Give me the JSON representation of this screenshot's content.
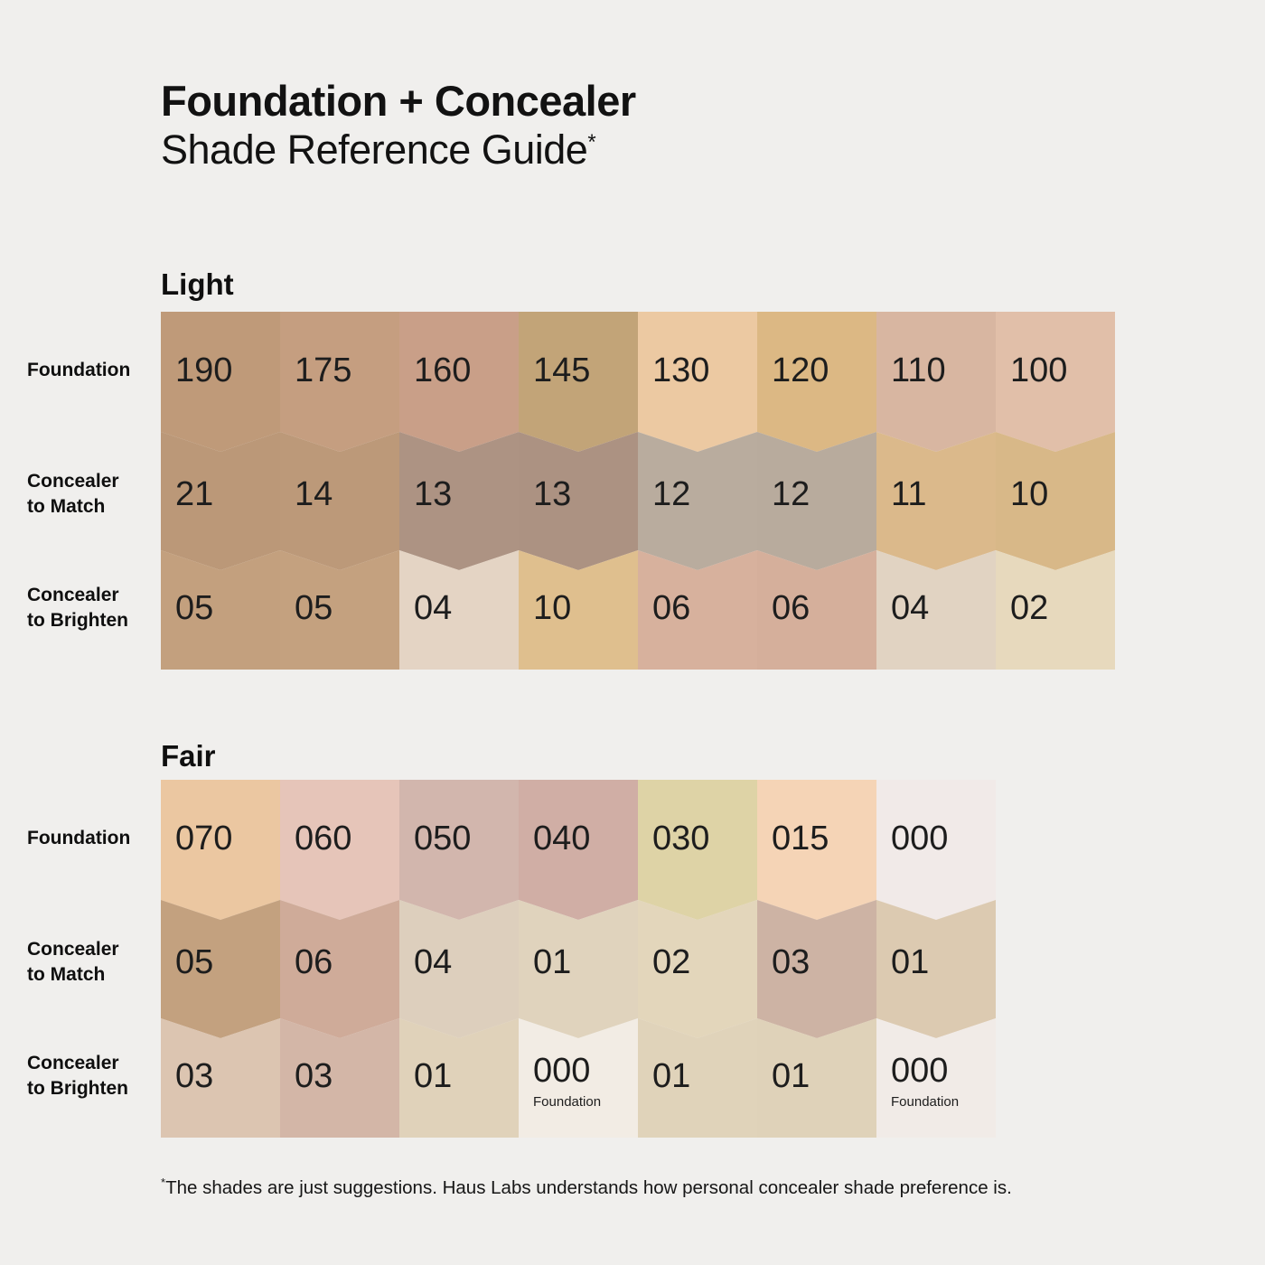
{
  "title": {
    "line1": "Foundation + Concealer",
    "line2": "Shade Reference Guide",
    "superscript": "*"
  },
  "colors": {
    "background": "#f0efed",
    "text": "#121212"
  },
  "row_labels": {
    "foundation": [
      "Foundation"
    ],
    "match": [
      "Concealer",
      "to Match"
    ],
    "brighten": [
      "Concealer",
      "to Brighten"
    ]
  },
  "sections": [
    {
      "heading": "Light",
      "rows": [
        {
          "key": "foundation",
          "cells": [
            {
              "label": "190",
              "color": "#bf9a79"
            },
            {
              "label": "175",
              "color": "#c59e80"
            },
            {
              "label": "160",
              "color": "#c99f88"
            },
            {
              "label": "145",
              "color": "#c2a478"
            },
            {
              "label": "130",
              "color": "#ecc9a2"
            },
            {
              "label": "120",
              "color": "#dcb884"
            },
            {
              "label": "110",
              "color": "#d8b6a1"
            },
            {
              "label": "100",
              "color": "#e1bfa9"
            }
          ]
        },
        {
          "key": "match",
          "cells": [
            {
              "label": "21",
              "color": "#bb9878"
            },
            {
              "label": "14",
              "color": "#bc9979"
            },
            {
              "label": "13",
              "color": "#ad9383"
            },
            {
              "label": "13",
              "color": "#ac9282"
            },
            {
              "label": "12",
              "color": "#b9ac9e"
            },
            {
              "label": "12",
              "color": "#b8ab9d"
            },
            {
              "label": "11",
              "color": "#dbb98b"
            },
            {
              "label": "10",
              "color": "#d8b888"
            }
          ]
        },
        {
          "key": "brighten",
          "cells": [
            {
              "label": "05",
              "color": "#c3a07e"
            },
            {
              "label": "05",
              "color": "#c4a17f"
            },
            {
              "label": "04",
              "color": "#e4d4c4"
            },
            {
              "label": "10",
              "color": "#dfbf8e"
            },
            {
              "label": "06",
              "color": "#d7b19d"
            },
            {
              "label": "06",
              "color": "#d5af9b"
            },
            {
              "label": "04",
              "color": "#e1d3c2"
            },
            {
              "label": "02",
              "color": "#e7d9bd"
            }
          ]
        }
      ]
    },
    {
      "heading": "Fair",
      "rows": [
        {
          "key": "foundation",
          "cells": [
            {
              "label": "070",
              "color": "#ebc7a1"
            },
            {
              "label": "060",
              "color": "#e6c5b9"
            },
            {
              "label": "050",
              "color": "#d2b6ad"
            },
            {
              "label": "040",
              "color": "#d0aea5"
            },
            {
              "label": "030",
              "color": "#ded3a6"
            },
            {
              "label": "015",
              "color": "#f5d4b6"
            },
            {
              "label": "000",
              "color": "#f1eae8"
            }
          ]
        },
        {
          "key": "match",
          "cells": [
            {
              "label": "05",
              "color": "#c3a17f"
            },
            {
              "label": "06",
              "color": "#cfab99"
            },
            {
              "label": "04",
              "color": "#ddcfbd"
            },
            {
              "label": "01",
              "color": "#e0d3bd"
            },
            {
              "label": "02",
              "color": "#e3d6bb"
            },
            {
              "label": "03",
              "color": "#cdb3a4"
            },
            {
              "label": "01",
              "color": "#dccab1"
            }
          ]
        },
        {
          "key": "brighten",
          "cells": [
            {
              "label": "03",
              "color": "#dcc5b1"
            },
            {
              "label": "03",
              "color": "#d3b6a7"
            },
            {
              "label": "01",
              "color": "#e0d2ba"
            },
            {
              "label": "000",
              "sublabel": "Foundation",
              "color": "#f2ece4"
            },
            {
              "label": "01",
              "color": "#e0d3ba"
            },
            {
              "label": "01",
              "color": "#dfd2b9"
            },
            {
              "label": "000",
              "sublabel": "Foundation",
              "color": "#f1ebe7"
            }
          ]
        }
      ]
    }
  ],
  "footnote": {
    "mark": "*",
    "text": "The shades are just suggestions. Haus Labs understands how personal concealer shade preference is."
  },
  "chart_data": [
    {
      "type": "table",
      "title": "Light",
      "row_headers": [
        "Foundation",
        "Concealer to Match",
        "Concealer to Brighten"
      ],
      "rows": [
        {
          "name": "Foundation",
          "values": [
            "190",
            "175",
            "160",
            "145",
            "130",
            "120",
            "110",
            "100"
          ]
        },
        {
          "name": "Concealer to Match",
          "values": [
            "21",
            "14",
            "13",
            "13",
            "12",
            "12",
            "11",
            "10"
          ]
        },
        {
          "name": "Concealer to Brighten",
          "values": [
            "05",
            "05",
            "04",
            "10",
            "06",
            "06",
            "04",
            "02"
          ]
        }
      ]
    },
    {
      "type": "table",
      "title": "Fair",
      "row_headers": [
        "Foundation",
        "Concealer to Match",
        "Concealer to Brighten"
      ],
      "rows": [
        {
          "name": "Foundation",
          "values": [
            "070",
            "060",
            "050",
            "040",
            "030",
            "015",
            "000"
          ]
        },
        {
          "name": "Concealer to Match",
          "values": [
            "05",
            "06",
            "04",
            "01",
            "02",
            "03",
            "01"
          ]
        },
        {
          "name": "Concealer to Brighten",
          "values": [
            "03",
            "03",
            "01",
            "000 Foundation",
            "01",
            "01",
            "000 Foundation"
          ]
        }
      ]
    }
  ]
}
